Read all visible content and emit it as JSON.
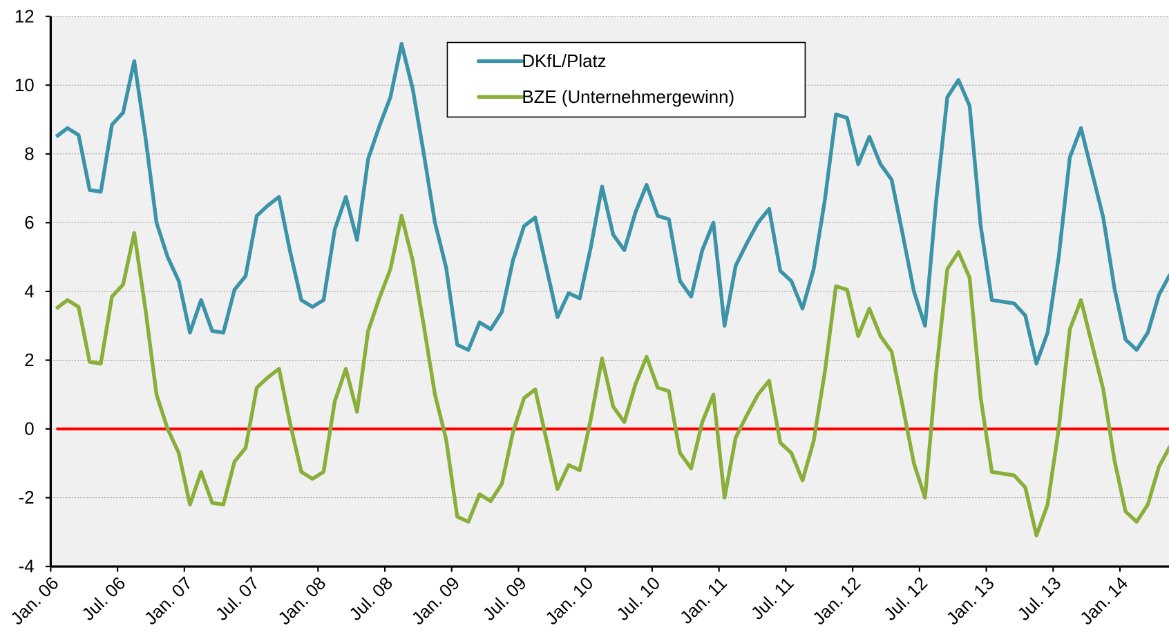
{
  "chart_data": {
    "type": "line",
    "categories": [
      "Jan. 06",
      null,
      null,
      null,
      null,
      null,
      "Jul. 06",
      null,
      null,
      null,
      null,
      null,
      "Jan. 07",
      null,
      null,
      null,
      null,
      null,
      "Jul. 07",
      null,
      null,
      null,
      null,
      null,
      "Jan. 08",
      null,
      null,
      null,
      null,
      null,
      "Jul. 08",
      null,
      null,
      null,
      null,
      null,
      "Jan. 09",
      null,
      null,
      null,
      null,
      null,
      "Jul. 09",
      null,
      null,
      null,
      null,
      null,
      "Jan. 10",
      null,
      null,
      null,
      null,
      null,
      "Jul. 10",
      null,
      null,
      null,
      null,
      null,
      "Jan. 11",
      null,
      null,
      null,
      null,
      null,
      "Jul. 11",
      null,
      null,
      null,
      null,
      null,
      "Jan. 12",
      null,
      null,
      null,
      null,
      null,
      "Jul. 12",
      null,
      null,
      null,
      null,
      null,
      "Jan. 13",
      null,
      null,
      null,
      null,
      null,
      "Jul. 13",
      null,
      null,
      null,
      null,
      null,
      "Jan. 14",
      null,
      null,
      null,
      null
    ],
    "series": [
      {
        "name": "DKfL/Platz",
        "color": "#3b93a8",
        "values": [
          8.5,
          8.75,
          8.55,
          6.95,
          6.9,
          8.85,
          9.2,
          10.7,
          8.5,
          6.0,
          5.0,
          4.3,
          2.8,
          3.75,
          2.85,
          2.8,
          4.05,
          4.45,
          6.2,
          6.5,
          6.75,
          5.15,
          3.75,
          3.55,
          3.75,
          5.8,
          6.75,
          5.5,
          7.85,
          8.8,
          9.65,
          11.2,
          9.9,
          8.0,
          6.0,
          4.7,
          2.45,
          2.3,
          3.1,
          2.9,
          3.4,
          4.9,
          5.9,
          6.15,
          4.7,
          3.25,
          3.95,
          3.8,
          5.3,
          7.05,
          5.65,
          5.2,
          6.3,
          7.1,
          6.2,
          6.1,
          4.3,
          3.85,
          5.2,
          6.0,
          3.0,
          4.75,
          5.4,
          6.0,
          6.4,
          4.6,
          4.3,
          3.5,
          4.65,
          6.65,
          9.15,
          9.05,
          7.7,
          8.5,
          7.7,
          7.25,
          5.65,
          4.0,
          3.0,
          6.65,
          9.65,
          10.15,
          9.4,
          5.9,
          3.75,
          3.7,
          3.65,
          3.3,
          1.9,
          2.8,
          5.0,
          7.9,
          8.75,
          7.45,
          6.15,
          4.1,
          2.6,
          2.3,
          2.8,
          3.9,
          4.5
        ]
      },
      {
        "name": "BZE (Unternehmergewinn)",
        "color": "#8aae3a",
        "values": [
          3.5,
          3.75,
          3.55,
          1.95,
          1.9,
          3.85,
          4.2,
          5.7,
          3.5,
          1.0,
          0.0,
          -0.7,
          -2.2,
          -1.25,
          -2.15,
          -2.2,
          -0.95,
          -0.55,
          1.2,
          1.5,
          1.75,
          0.15,
          -1.25,
          -1.45,
          -1.25,
          0.8,
          1.75,
          0.5,
          2.85,
          3.8,
          4.65,
          6.2,
          4.9,
          3.0,
          1.0,
          -0.3,
          -2.55,
          -2.7,
          -1.9,
          -2.1,
          -1.6,
          -0.1,
          0.9,
          1.15,
          -0.3,
          -1.75,
          -1.05,
          -1.2,
          0.3,
          2.05,
          0.65,
          0.2,
          1.3,
          2.1,
          1.2,
          1.1,
          -0.7,
          -1.15,
          0.2,
          1.0,
          -2.0,
          -0.25,
          0.4,
          1.0,
          1.4,
          -0.4,
          -0.7,
          -1.5,
          -0.35,
          1.65,
          4.15,
          4.05,
          2.7,
          3.5,
          2.7,
          2.25,
          0.65,
          -1.0,
          -2.0,
          1.65,
          4.65,
          5.15,
          4.4,
          0.9,
          -1.25,
          -1.3,
          -1.35,
          -1.7,
          -3.1,
          -2.2,
          0.0,
          2.9,
          3.75,
          2.45,
          1.15,
          -0.9,
          -2.4,
          -2.7,
          -2.2,
          -1.1,
          -0.5
        ]
      }
    ],
    "ylim": [
      -4,
      12
    ],
    "yticks": [
      -4,
      -2,
      0,
      2,
      4,
      6,
      8,
      10,
      12
    ],
    "grid": true,
    "reference_line": {
      "value": 0,
      "color": "#ff0000"
    },
    "legend": "top"
  }
}
